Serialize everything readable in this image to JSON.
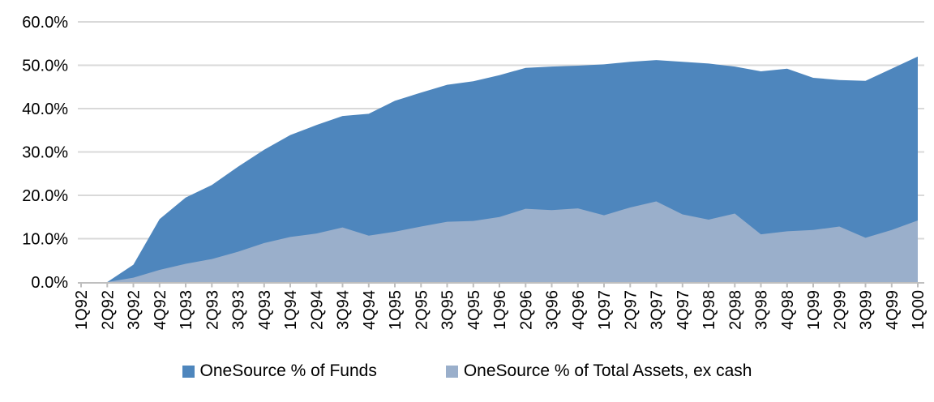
{
  "chart_data": {
    "type": "area",
    "overlapping": true,
    "title": "",
    "categories": [
      "1Q92",
      "2Q92",
      "3Q92",
      "4Q92",
      "1Q93",
      "2Q93",
      "3Q93",
      "4Q93",
      "1Q94",
      "2Q94",
      "3Q94",
      "4Q94",
      "1Q95",
      "2Q95",
      "3Q95",
      "4Q95",
      "1Q96",
      "2Q96",
      "3Q96",
      "4Q96",
      "1Q97",
      "2Q97",
      "3Q97",
      "4Q97",
      "1Q98",
      "2Q98",
      "3Q98",
      "4Q98",
      "1Q99",
      "2Q99",
      "3Q99",
      "4Q99",
      "1Q00"
    ],
    "series": [
      {
        "name": "OneSource % of Funds",
        "color": "#4E86BD",
        "values": [
          0,
          0,
          4.0,
          14.5,
          19.5,
          22.4,
          26.6,
          30.5,
          33.9,
          36.2,
          38.3,
          38.8,
          41.8,
          43.7,
          45.5,
          46.3,
          47.7,
          49.4,
          49.7,
          49.9,
          50.2,
          50.8,
          51.2,
          50.8,
          50.4,
          49.7,
          48.6,
          49.2,
          47.1,
          46.6,
          46.4,
          49.2,
          52.0
        ]
      },
      {
        "name": "OneSource % of Total Assets, ex cash",
        "color": "#9AAFCB",
        "values": [
          0,
          0,
          1.0,
          2.8,
          4.2,
          5.3,
          7.0,
          9.0,
          10.4,
          11.2,
          12.6,
          10.7,
          11.6,
          12.8,
          13.9,
          14.1,
          15.0,
          16.9,
          16.6,
          17.0,
          15.4,
          17.2,
          18.6,
          15.6,
          14.4,
          15.8,
          11.0,
          11.7,
          12.0,
          12.8,
          10.2,
          12.0,
          14.2
        ]
      }
    ],
    "y_axis": {
      "tick_labels": [
        "0.0%",
        "10.0%",
        "20.0%",
        "30.0%",
        "40.0%",
        "50.0%",
        "60.0%"
      ],
      "min": 0,
      "max": 60,
      "step": 10,
      "grid": true
    },
    "x_axis": {
      "label_rotation_deg": -90
    },
    "legend_position": "bottom"
  },
  "styles": {
    "grid_color": "#D9D9D9",
    "axis_color": "#BFBFBF",
    "text_color": "#000000",
    "background": "#FFFFFF"
  }
}
